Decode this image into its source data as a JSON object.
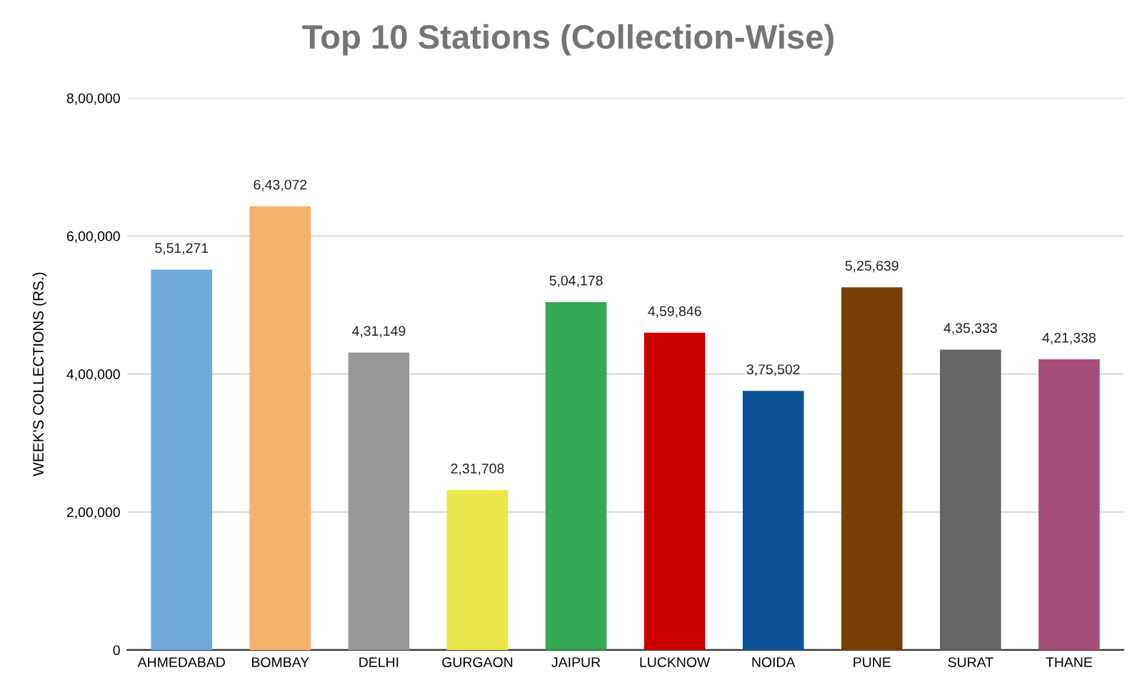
{
  "chart_data": {
    "type": "bar",
    "title": "Top 10 Stations (Collection-Wise)",
    "ylabel": "WEEK'S COLLECTIONS (RS.)",
    "categories": [
      "AHMEDABAD",
      "BOMBAY",
      "DELHI",
      "GURGAON",
      "JAIPUR",
      "LUCKNOW",
      "NOIDA",
      "PUNE",
      "SURAT",
      "THANE"
    ],
    "values": [
      551271,
      643072,
      431149,
      231708,
      504178,
      459846,
      375502,
      525639,
      435333,
      421338
    ],
    "value_labels": [
      "5,51,271",
      "6,43,072",
      "4,31,149",
      "2,31,708",
      "5,04,178",
      "4,59,846",
      "3,75,502",
      "5,25,639",
      "4,35,333",
      "4,21,338"
    ],
    "colors": [
      "#6fa8dc",
      "#f6b26b",
      "#999999",
      "#e8e84a",
      "#34a853",
      "#cc0000",
      "#0b5394",
      "#783f04",
      "#666666",
      "#a64d79"
    ],
    "ylim": [
      0,
      800000
    ],
    "yticks": [
      0,
      {
        "value": 200000,
        "label": "2,00,000"
      },
      {
        "value": 400000,
        "label": "4,00,000"
      },
      {
        "value": 600000,
        "label": "6,00,000"
      },
      {
        "value": 800000,
        "label": "8,00,000"
      }
    ],
    "grid": "y"
  }
}
